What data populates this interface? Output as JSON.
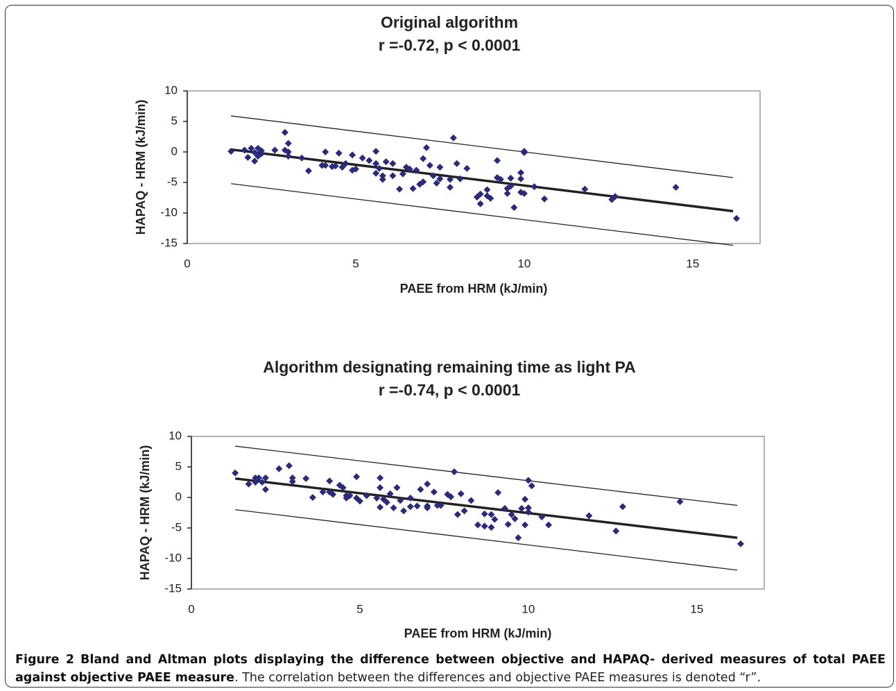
{
  "chart_data": [
    {
      "type": "scatter",
      "title": "Original algorithm",
      "subtitle": "r =-0.72, p < 0.0001",
      "x_label": "PAEE from HRM (kJ/min)",
      "y_label": "HAPAQ - HRM (kJ/min)",
      "xlim": [
        0,
        17
      ],
      "ylim": [
        -15,
        10
      ],
      "xticks": [
        0,
        5,
        10,
        15
      ],
      "yticks": [
        10,
        5,
        0,
        -5,
        -10,
        -15
      ],
      "color": "#2b2b7a",
      "x": [
        1.3,
        1.7,
        1.8,
        1.9,
        2.0,
        2.0,
        2.1,
        2.1,
        2.2,
        2.2,
        2.6,
        2.9,
        2.9,
        3.0,
        3.0,
        3.0,
        3.4,
        3.6,
        4.0,
        4.1,
        4.1,
        4.3,
        4.4,
        4.5,
        4.6,
        4.7,
        4.9,
        4.9,
        5.0,
        5.2,
        5.4,
        5.6,
        5.6,
        5.6,
        5.7,
        5.8,
        5.8,
        5.9,
        6.1,
        6.1,
        6.3,
        6.4,
        6.5,
        6.6,
        6.7,
        6.8,
        6.9,
        7.0,
        7.1,
        7.0,
        7.2,
        7.3,
        7.4,
        7.5,
        7.5,
        7.8,
        7.8,
        7.9,
        8.0,
        8.1,
        8.3,
        8.6,
        8.7,
        8.7,
        8.9,
        8.9,
        9.0,
        9.2,
        9.2,
        9.3,
        9.5,
        9.5,
        9.6,
        9.6,
        9.7,
        9.9,
        9.9,
        9.9,
        10.0,
        10.0,
        10.0,
        10.3,
        10.6,
        11.8,
        12.6,
        12.7,
        14.5,
        16.3
      ],
      "values": [
        0.1,
        0.3,
        -0.9,
        0.6,
        -1.5,
        -0.1,
        0.6,
        -0.7,
        0.2,
        -0.3,
        0.3,
        3.2,
        0.3,
        1.4,
        -0.7,
        0,
        -1.0,
        -3.1,
        -2.2,
        0,
        -2.2,
        -2.4,
        -2.3,
        -0.2,
        -2.5,
        -1.9,
        -3.0,
        -0.5,
        -2.8,
        -1.0,
        -1.4,
        0.1,
        -1.9,
        -3.5,
        -2.7,
        -4.5,
        -3.9,
        -1.6,
        -3.9,
        -1.9,
        -6.1,
        -3.6,
        -2.5,
        -2.8,
        -6.0,
        -3.0,
        -5.3,
        -1.1,
        0.7,
        -4.9,
        -2.2,
        -3.9,
        -5.1,
        -2.5,
        -4.4,
        -4.5,
        -5.8,
        2.3,
        -1.9,
        -4.4,
        -2.7,
        -7.4,
        -6.9,
        -8.5,
        -6.2,
        -7.2,
        -7.6,
        -1.4,
        -4.2,
        -4.5,
        -6.8,
        -6.0,
        -4.3,
        -5.6,
        -9.1,
        -3.4,
        -6.6,
        -4.4,
        0.1,
        -0.1,
        -6.8,
        -5.7,
        -7.7,
        -6.1,
        -7.8,
        -7.3,
        -5.8,
        -10.9
      ],
      "lines": [
        {
          "x": [
            1.3,
            16.2
          ],
          "values": [
            5.9,
            -4.2
          ],
          "color": "#222222",
          "width": 1.3
        },
        {
          "x": [
            1.3,
            16.2
          ],
          "values": [
            0.4,
            -9.7
          ],
          "color": "#222222",
          "width": 3.5
        },
        {
          "x": [
            1.3,
            16.2
          ],
          "values": [
            -5.2,
            -15.3
          ],
          "color": "#222222",
          "width": 1.3
        }
      ]
    },
    {
      "type": "scatter",
      "title": "Algorithm designating remaining time as light PA",
      "subtitle": "r =-0.74, p < 0.0001",
      "x_label": "PAEE from HRM (kJ/min)",
      "y_label": "HAPAQ - HRM (kJ/min)",
      "xlim": [
        0,
        17
      ],
      "ylim": [
        -15,
        10
      ],
      "xticks": [
        0,
        5,
        10,
        15
      ],
      "yticks": [
        10,
        5,
        0,
        -5,
        -10,
        -15
      ],
      "color": "#2b2b7a",
      "x": [
        1.3,
        1.7,
        1.9,
        1.9,
        2.0,
        2.1,
        2.2,
        2.2,
        2.6,
        2.9,
        3.0,
        3.0,
        3.4,
        3.6,
        3.9,
        4.1,
        4.1,
        4.2,
        4.4,
        4.5,
        4.6,
        4.6,
        4.7,
        4.9,
        4.9,
        5.0,
        5.2,
        5.5,
        5.6,
        5.6,
        5.6,
        5.7,
        5.8,
        5.9,
        6.0,
        6.1,
        6.2,
        6.3,
        6.5,
        6.5,
        6.7,
        6.8,
        7.0,
        7.0,
        7.0,
        7.2,
        7.3,
        7.4,
        7.6,
        7.7,
        7.8,
        7.9,
        8.0,
        8.1,
        8.3,
        8.5,
        8.7,
        8.7,
        8.9,
        8.9,
        9.0,
        9.1,
        9.3,
        9.4,
        9.5,
        9.6,
        9.7,
        9.8,
        9.9,
        9.9,
        10.0,
        10.0,
        10.0,
        10.1,
        10.4,
        10.6,
        11.8,
        12.6,
        12.8,
        14.5,
        16.3
      ],
      "values": [
        4.0,
        2.2,
        3.2,
        2.5,
        3.2,
        2.5,
        3.2,
        1.3,
        4.7,
        5.2,
        3.2,
        2.6,
        3.1,
        0,
        0.9,
        2.7,
        0.9,
        0.5,
        2.0,
        1.6,
        -0.1,
        0.3,
        0.3,
        -0.1,
        3.4,
        -0.6,
        0.3,
        -0.1,
        1.6,
        3.2,
        -1.6,
        -0.3,
        -0.8,
        0.6,
        -1.7,
        1.6,
        -0.5,
        -2.2,
        -0.1,
        -1.5,
        -1.4,
        1.3,
        -1.4,
        -1.7,
        2.2,
        0.9,
        -1.3,
        -1.3,
        0.5,
        0.1,
        4.2,
        -2.8,
        0.6,
        -2.2,
        -0.5,
        -4.5,
        -2.7,
        -4.7,
        -4.9,
        -2.8,
        -3.6,
        0.8,
        -1.8,
        -4.4,
        -2.8,
        -3.5,
        -6.6,
        -1.8,
        -0.3,
        -4.5,
        2.8,
        -2.4,
        -1.7,
        1.9,
        -3.2,
        -4.5,
        -3.0,
        -5.5,
        -1.5,
        -0.7,
        -7.6
      ],
      "lines": [
        {
          "x": [
            1.3,
            16.2
          ],
          "values": [
            8.4,
            -1.3
          ],
          "color": "#222222",
          "width": 1.3
        },
        {
          "x": [
            1.3,
            16.2
          ],
          "values": [
            3.1,
            -6.6
          ],
          "color": "#222222",
          "width": 3.5
        },
        {
          "x": [
            1.3,
            16.2
          ],
          "values": [
            -2.0,
            -11.9
          ],
          "color": "#222222",
          "width": 1.3
        }
      ]
    }
  ],
  "caption": {
    "label": "Figure 2",
    "bold": "Bland and Altman plots displaying the difference between objective and HAPAQ- derived measures of total PAEE against objective PAEE measure",
    "text": ". The correlation between the differences and objective PAEE measures is denoted “r”."
  }
}
